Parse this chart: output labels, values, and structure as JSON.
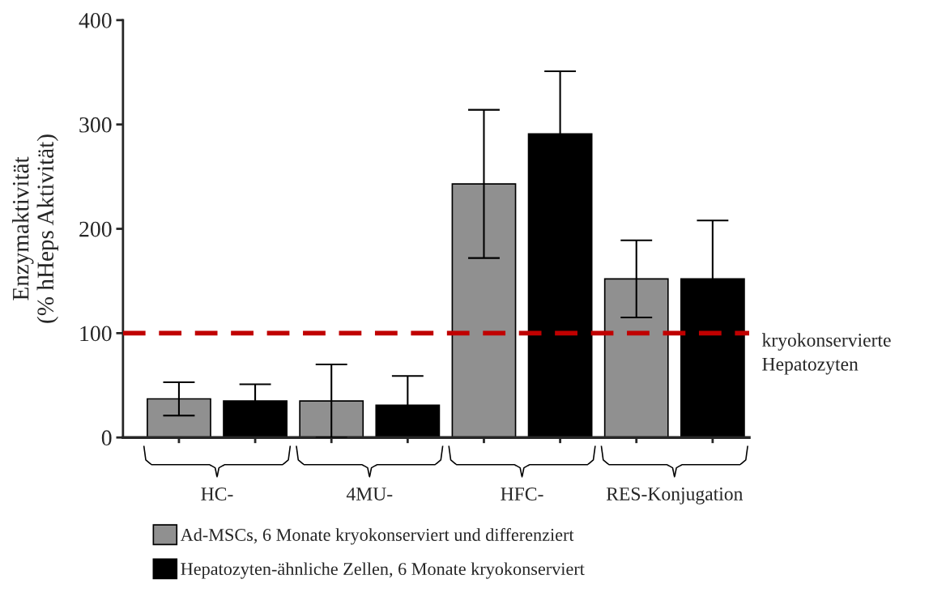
{
  "chart_data": {
    "type": "bar",
    "ylabel": "Enzymaktivität\n(% hHeps Aktivität)",
    "categories": [
      "HC-",
      "4MU-",
      "HFC-",
      "RES-Konjugation"
    ],
    "series": [
      {
        "name": "Ad-MSCs, 6 Monate kryokonserviert und differenziert",
        "color": "#909090",
        "values": [
          37,
          35,
          243,
          152
        ],
        "errors": [
          16,
          35,
          71,
          37
        ]
      },
      {
        "name": "Hepatozyten-ähnliche Zellen, 6 Monate kryokonserviert",
        "color": "#000000",
        "values": [
          35,
          31,
          291,
          152
        ],
        "errors": [
          16,
          28,
          60,
          56
        ]
      }
    ],
    "ylim": [
      0,
      400
    ],
    "yticks": [
      0,
      100,
      200,
      300,
      400
    ],
    "ref_lines": [
      {
        "axis": "y",
        "value": 100,
        "label": "kryokonservierte\nHepatozyten",
        "color": "#c00000",
        "line_style": "dashed"
      }
    ],
    "grid": false,
    "legend": "bottom"
  }
}
